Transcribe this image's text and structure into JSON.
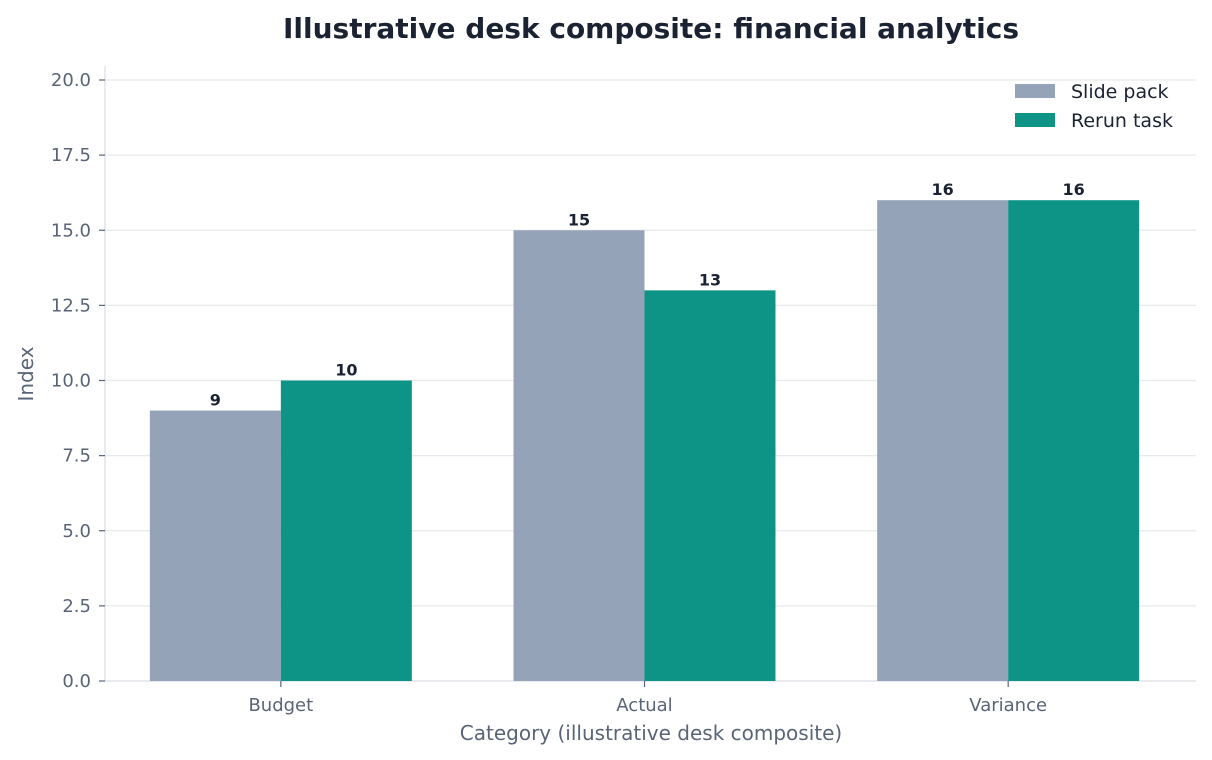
{
  "chart_data": {
    "type": "bar",
    "title": "Illustrative desk composite: financial analytics",
    "xlabel": "Category (illustrative desk composite)",
    "ylabel": "Index",
    "categories": [
      "Budget",
      "Actual",
      "Variance"
    ],
    "series": [
      {
        "name": "Slide pack",
        "values": [
          9,
          15,
          16
        ],
        "color": "#95a3b8"
      },
      {
        "name": "Rerun task",
        "values": [
          10,
          13,
          16
        ],
        "color": "#0e9486"
      }
    ],
    "ylim": [
      0,
      20
    ],
    "yticks": [
      "0.0",
      "2.5",
      "5.0",
      "7.5",
      "10.0",
      "12.5",
      "15.0",
      "17.5",
      "20.0"
    ],
    "grid": true,
    "legend_position": "top-right"
  }
}
